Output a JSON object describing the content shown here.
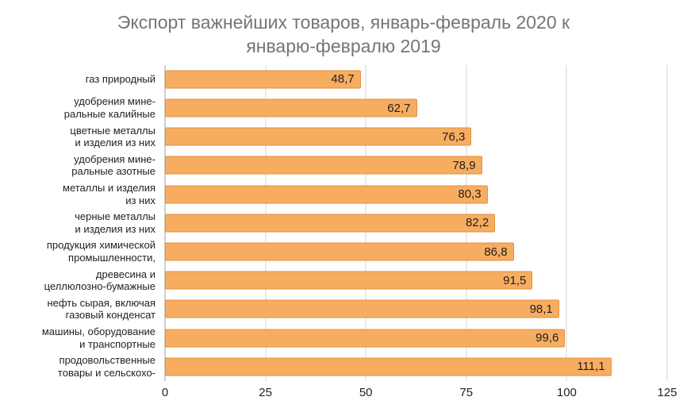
{
  "chart_data": {
    "type": "bar",
    "orientation": "horizontal",
    "title": "Экспорт важнейших товаров, январь-февраль 2020 к\nянварю-февралю 2019",
    "categories": [
      "газ природный",
      "удобрения мине-\nральные калийные",
      "цветные металлы\nи изделия из них",
      "удобрения мине-\nральные азотные",
      "металлы и изделия\nиз них",
      "черные металлы\nи изделия из них",
      "продукция химической\nпромышленности,",
      "древесина и\nцеллюлозно-бумажные",
      "нефть сырая, включая\nгазовый конденсат",
      "машины, оборудование\nи транспортные",
      "продовольственные\nтовары и сельскохо-"
    ],
    "values": [
      48.7,
      62.7,
      76.3,
      78.9,
      80.3,
      82.2,
      86.8,
      91.5,
      98.1,
      99.6,
      111.1
    ],
    "value_labels": [
      "48,7",
      "62,7",
      "76,3",
      "78,9",
      "80,3",
      "82,2",
      "86,8",
      "91,5",
      "98,1",
      "99,6",
      "111,1"
    ],
    "xlabel": "",
    "ylabel": "",
    "xlim": [
      0,
      125
    ],
    "x_ticks": [
      0,
      25,
      50,
      75,
      100,
      125
    ],
    "grid": "vertical",
    "legend": "none",
    "bar_color": "#f7ad60",
    "bar_border_color": "#e2913e",
    "title_color": "#757575"
  }
}
